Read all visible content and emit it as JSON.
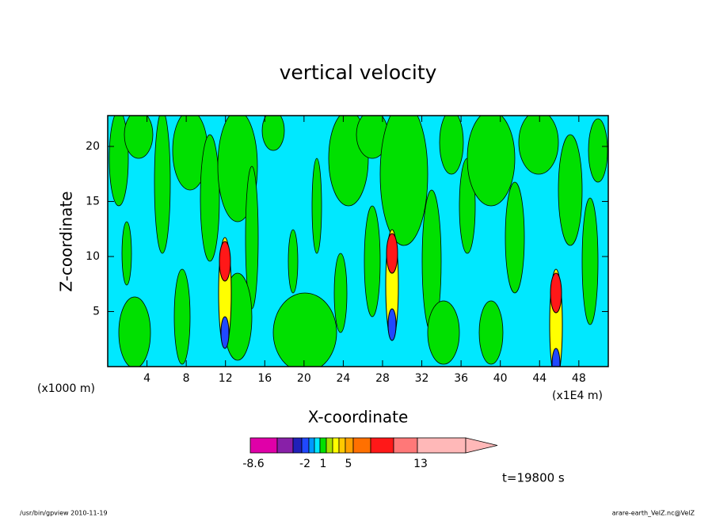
{
  "chart_data": {
    "type": "contour",
    "title": "vertical velocity",
    "x_label": "X-coordinate",
    "y_label": "Z-coordinate",
    "xlim": [
      0,
      51
    ],
    "ylim": [
      0,
      22.8
    ],
    "xticks": [
      4,
      8,
      12,
      16,
      20,
      24,
      28,
      32,
      36,
      40,
      44,
      48
    ],
    "yticks": [
      5,
      10,
      15,
      20
    ],
    "annotations": [
      "(x1000 m)",
      "(x1E4 m)",
      "t=19800 s"
    ],
    "colorbar": {
      "levels": [
        -8.6,
        -6,
        -4,
        -2,
        -1,
        0,
        1,
        2,
        3,
        4,
        5,
        7,
        9,
        11,
        13,
        17
      ],
      "colors": [
        "#e000a8",
        "#8820a8",
        "#2020b8",
        "#2048ff",
        "#0098ff",
        "#00e8ff",
        "#00e000",
        "#a8e000",
        "#ffff00",
        "#ffc800",
        "#ffa000",
        "#ff7000",
        "#ff1818",
        "#ff7878",
        "#ffb8b8"
      ],
      "extend_color": "#ffb8b8",
      "ticks": [
        -8.6,
        -2,
        1,
        5,
        13
      ]
    },
    "background_color": "#00e8ff",
    "field_color": "#00e000"
  },
  "footer": {
    "left": "/usr/bin/gpview   2010-11-19",
    "right": "arare-earth_VelZ.nc@VelZ"
  }
}
